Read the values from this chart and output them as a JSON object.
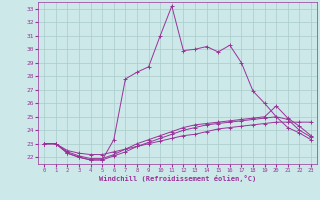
{
  "xlabel": "Windchill (Refroidissement éolien,°C)",
  "bg_color": "#cce8e8",
  "grid_color": "#aacccc",
  "line_color": "#993399",
  "ylim": [
    21.5,
    33.5
  ],
  "xlim": [
    -0.5,
    23.5
  ],
  "yticks": [
    22,
    23,
    24,
    25,
    26,
    27,
    28,
    29,
    30,
    31,
    32,
    33
  ],
  "xticks": [
    0,
    1,
    2,
    3,
    4,
    5,
    6,
    7,
    8,
    9,
    10,
    11,
    12,
    13,
    14,
    15,
    16,
    17,
    18,
    19,
    20,
    21,
    22,
    23
  ],
  "line1_x": [
    0,
    1,
    2,
    3,
    4,
    5,
    6,
    7,
    8,
    9,
    10,
    11,
    12,
    13,
    14,
    15,
    16,
    17,
    18,
    19,
    20,
    21,
    22,
    23
  ],
  "line1_y": [
    23.0,
    23.0,
    22.3,
    22.0,
    21.8,
    21.8,
    23.3,
    27.8,
    28.3,
    28.7,
    31.0,
    33.2,
    29.9,
    30.0,
    30.2,
    29.8,
    30.3,
    29.0,
    26.9,
    26.0,
    25.0,
    24.2,
    23.8,
    23.3
  ],
  "line2_x": [
    0,
    1,
    2,
    3,
    4,
    5,
    6,
    7,
    8,
    9,
    10,
    11,
    12,
    13,
    14,
    15,
    16,
    17,
    18,
    19,
    20,
    21,
    22,
    23
  ],
  "line2_y": [
    23.0,
    23.0,
    22.5,
    22.3,
    22.2,
    22.2,
    22.4,
    22.6,
    22.8,
    23.0,
    23.2,
    23.4,
    23.6,
    23.7,
    23.9,
    24.1,
    24.2,
    24.3,
    24.4,
    24.5,
    24.6,
    24.6,
    24.6,
    24.6
  ],
  "line3_x": [
    0,
    1,
    2,
    3,
    4,
    5,
    6,
    7,
    8,
    9,
    10,
    11,
    12,
    13,
    14,
    15,
    16,
    17,
    18,
    19,
    20,
    21,
    22,
    23
  ],
  "line3_y": [
    23.0,
    23.0,
    22.4,
    22.1,
    21.9,
    21.9,
    22.2,
    22.6,
    23.0,
    23.3,
    23.6,
    23.9,
    24.2,
    24.4,
    24.5,
    24.6,
    24.7,
    24.8,
    24.9,
    25.0,
    25.8,
    24.9,
    24.3,
    23.6
  ],
  "line4_x": [
    0,
    1,
    2,
    3,
    4,
    5,
    6,
    7,
    8,
    9,
    10,
    11,
    12,
    13,
    14,
    15,
    16,
    17,
    18,
    19,
    20,
    21,
    22,
    23
  ],
  "line4_y": [
    23.0,
    23.0,
    22.3,
    22.0,
    21.8,
    21.8,
    22.1,
    22.4,
    22.8,
    23.1,
    23.4,
    23.7,
    24.0,
    24.2,
    24.4,
    24.5,
    24.6,
    24.7,
    24.8,
    24.9,
    25.0,
    24.8,
    24.0,
    23.5
  ]
}
